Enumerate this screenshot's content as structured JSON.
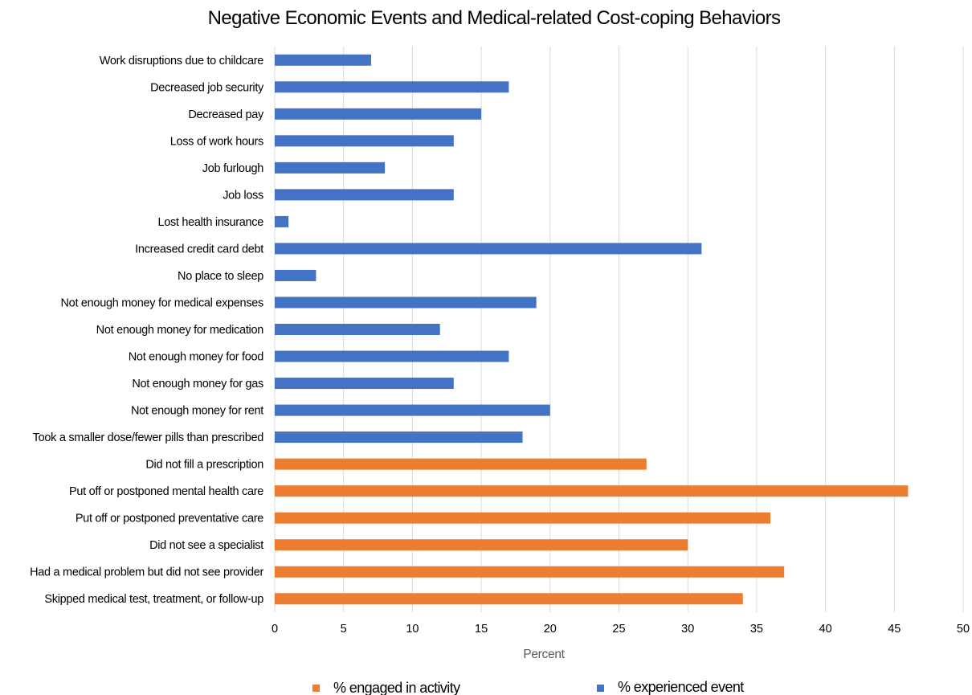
{
  "chart_data": {
    "type": "bar",
    "orientation": "horizontal",
    "title": "Negative Economic Events and Medical-related Cost-coping Behaviors",
    "xlabel": "Percent",
    "ylabel": "",
    "xlim": [
      0,
      50
    ],
    "xticks": [
      "0",
      "5",
      "10",
      "15",
      "20",
      "25",
      "30",
      "35",
      "40",
      "45",
      "50"
    ],
    "grid": "vertical",
    "legend_position": "bottom",
    "categories": [
      "Work disruptions due to childcare",
      "Decreased job security",
      "Decreased pay",
      "Loss of work hours",
      "Job furlough",
      "Job loss",
      "Lost health insurance",
      "Increased credit card debt",
      "No place to sleep",
      "Not enough money for medical expenses",
      "Not enough money for medication",
      "Not enough money for food",
      "Not enough money for gas",
      "Not enough money for rent",
      "Took a smaller dose/fewer pills than prescribed",
      "Did not fill a prescription",
      "Put off or postponed mental health care",
      "Put off or postponed preventative care",
      "Did not see a specialist",
      "Had a medical problem but did not see provider",
      "Skipped medical test, treatment, or follow-up"
    ],
    "series": [
      {
        "name": "% engaged in activity",
        "color": "#ED7D31",
        "values": [
          null,
          null,
          null,
          null,
          null,
          null,
          null,
          null,
          null,
          null,
          null,
          null,
          null,
          null,
          null,
          27,
          46,
          36,
          30,
          37,
          34
        ]
      },
      {
        "name": "% experienced event",
        "color": "#4472C4",
        "values": [
          7,
          17,
          15,
          13,
          8,
          13,
          1,
          31,
          3,
          19,
          12,
          17,
          13,
          20,
          18,
          null,
          null,
          null,
          null,
          null,
          null
        ]
      }
    ]
  }
}
